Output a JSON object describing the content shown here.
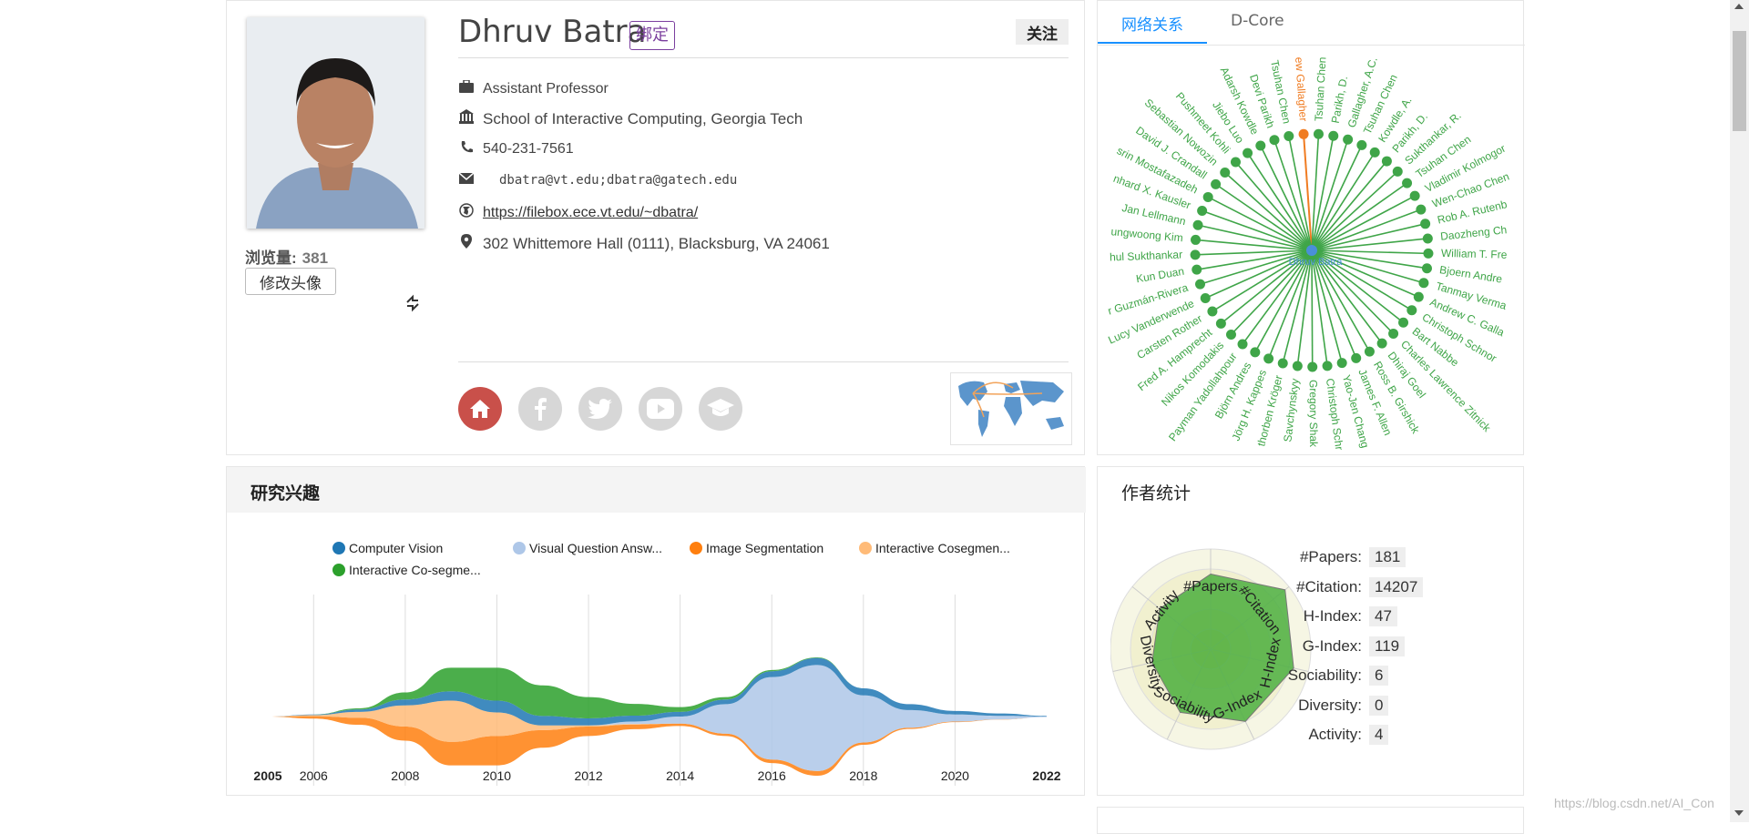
{
  "profile": {
    "name": "Dhruv Batra",
    "bind_label": "绑定",
    "follow_label": "关注",
    "views_label": "浏览量:",
    "views_count": "381",
    "change_avatar_label": "修改头像",
    "position": "Assistant Professor",
    "affiliation": "School of Interactive Computing, Georgia Tech",
    "phone": "540-231-7561",
    "email": "dbatra@vt.edu;dbatra@gatech.edu",
    "homepage": "https://filebox.ece.vt.edu/~dbatra/",
    "address": "302 Whittemore Hall (0111), Blacksburg, VA 24061"
  },
  "social_icons": [
    "home-icon",
    "facebook-icon",
    "twitter-icon",
    "youtube-icon",
    "scholar-icon"
  ],
  "network": {
    "tabs": [
      "网络关系",
      "D-Core"
    ],
    "center_name": "Dhruv Batra",
    "highlight_name": "ew Gallagher",
    "nodes_left": [
      "Sebastian Nowozin",
      "David J. Crandall",
      "srin Mostafazadeh",
      "nhard X. Kausler",
      "Jan Lellmann",
      "ungwoong Kim",
      "hul Sukthankar",
      "Kun Duan",
      "r Guzmán-Rivera",
      "Lucy Vanderwende",
      "Carsten Rother",
      "Fred A. Hamprecht",
      "Nikos Komodakis",
      "Payman Yadollahpour",
      "Björn Andres",
      "Jörg H. Kappes",
      "thorben Kröger",
      "Savchynskyy"
    ],
    "nodes_top": [
      "Pushmeet Kohli",
      "Jiebo Luo",
      "Adarsh Kowdle",
      "Devi Parikh",
      "Tsuhan Chen"
    ],
    "nodes_right": [
      "Tsuhan Chen",
      "Parikh, D.",
      "Gallagher, A.C.",
      "Tsuhan Chen",
      "Kowdle, A.",
      "Parikh, D.",
      "Sukthankar, R.",
      "Tsuhan Chen",
      "Vladimir Kolmogor",
      "Wen-Chao Chen",
      "Rob A. Rutenb",
      "Daozheng Ch",
      "William T. Fre",
      "Bjoern Andre",
      "Tanmay Verma",
      "Andrew C. Galla",
      "Christoph Schnor",
      "Bart Nabbe",
      "Charles Lawrence Zitnick",
      "Dhiraj Goel",
      "Ross B. Girshick",
      "James F. Allen",
      "Yao-Jen Chang",
      "Christoph Schr",
      "Gregory Shak"
    ]
  },
  "interest": {
    "title": "研究兴趣",
    "legend": [
      {
        "label": "Computer Vision",
        "color": "#1f77b4"
      },
      {
        "label": "Visual Question Answ...",
        "color": "#aec7e8"
      },
      {
        "label": "Image Segmentation",
        "color": "#ff7f0e"
      },
      {
        "label": "Interactive Cosegmen...",
        "color": "#ffbb78"
      },
      {
        "label": "Interactive Co-segme...",
        "color": "#2ca02c"
      }
    ]
  },
  "chart_data": {
    "type": "area",
    "title": "研究兴趣",
    "x": [
      2005,
      2006,
      2007,
      2008,
      2009,
      2010,
      2011,
      2012,
      2013,
      2014,
      2015,
      2016,
      2017,
      2018,
      2019,
      2020,
      2021,
      2022
    ],
    "x_tick_labels": [
      "2005",
      "2006",
      "2008",
      "2010",
      "2012",
      "2014",
      "2016",
      "2018",
      "2020",
      "2022"
    ],
    "series": [
      {
        "name": "Computer Vision",
        "values": [
          0,
          0.5,
          2,
          5,
          8,
          10,
          8,
          6,
          5,
          4,
          4,
          5,
          6,
          6,
          5,
          3,
          2,
          0.5
        ]
      },
      {
        "name": "Visual Question Answ...",
        "values": [
          0,
          0,
          0,
          0,
          0,
          0,
          0,
          0,
          2,
          6,
          25,
          70,
          90,
          40,
          15,
          6,
          3,
          0.5
        ]
      },
      {
        "name": "Image Segmentation",
        "values": [
          0,
          2,
          6,
          12,
          20,
          25,
          15,
          8,
          4,
          2,
          2,
          3,
          4,
          2,
          1,
          0.5,
          0.2,
          0
        ]
      },
      {
        "name": "Interactive Cosegmen...",
        "values": [
          0,
          1,
          5,
          18,
          35,
          20,
          4,
          1,
          0.5,
          0,
          0,
          0,
          0,
          0,
          0,
          0,
          0,
          0
        ]
      },
      {
        "name": "Interactive Co-segme...",
        "values": [
          0,
          0,
          1,
          6,
          20,
          28,
          26,
          18,
          10,
          4,
          2,
          1,
          0.5,
          0,
          0,
          0,
          0,
          0
        ]
      }
    ]
  },
  "stats": {
    "title": "作者统计",
    "rows": [
      {
        "label": "#Papers:",
        "value": "181"
      },
      {
        "label": "#Citation:",
        "value": "14207"
      },
      {
        "label": "H-Index:",
        "value": "47"
      },
      {
        "label": "G-Index:",
        "value": "119"
      },
      {
        "label": "Sociability:",
        "value": "6"
      },
      {
        "label": "Diversity:",
        "value": "0"
      },
      {
        "label": "Activity:",
        "value": "4"
      }
    ],
    "radar_axes": [
      "#Papers",
      "#Citation",
      "H-Index",
      "G-Index",
      "Sociability",
      "Diversity",
      "Activity"
    ],
    "radar_values": [
      0.75,
      0.95,
      0.85,
      0.8,
      0.7,
      0.6,
      0.65
    ]
  },
  "watermark": "https://blog.csdn.net/AI_Con"
}
